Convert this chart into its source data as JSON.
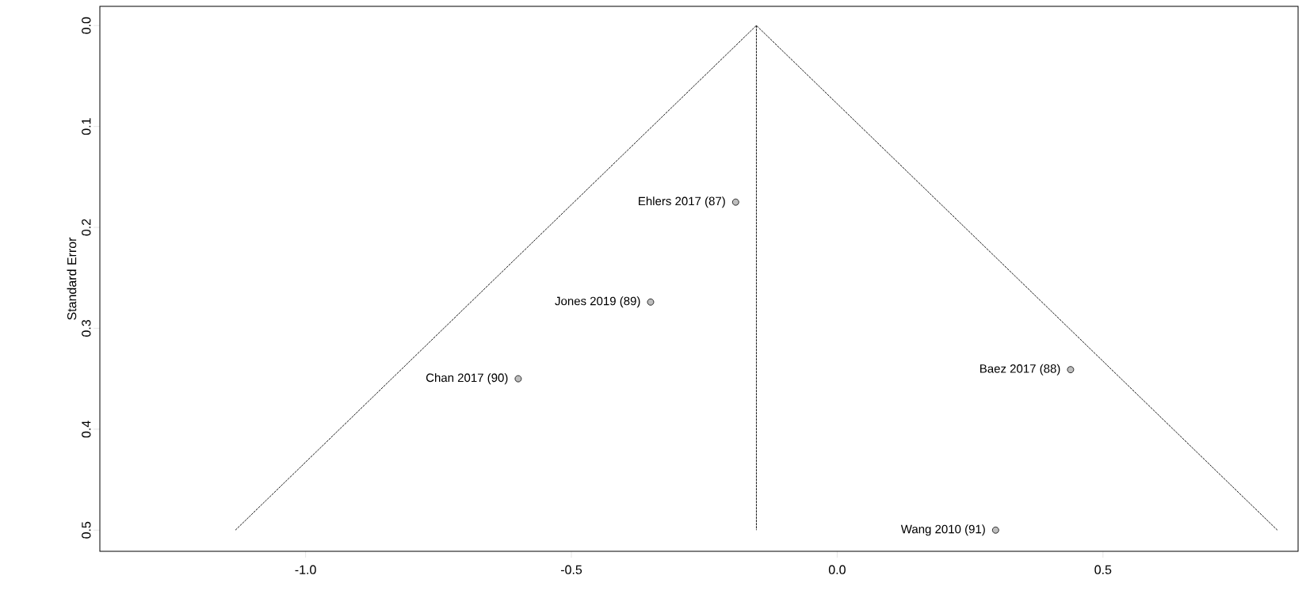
{
  "chart_data": {
    "type": "scatter",
    "ylabel": "Standard Error",
    "xlim": [
      -1.387,
      0.867
    ],
    "ylim": [
      0.521,
      -0.019
    ],
    "xticks": [
      {
        "value": -1.0,
        "label": "-1.0"
      },
      {
        "value": -0.5,
        "label": "-0.5"
      },
      {
        "value": 0,
        "label": "0.0"
      },
      0.5
    ],
    "yticks": [
      {
        "value": 0,
        "label": "0.0"
      },
      0.1,
      0.2,
      0.3,
      0.4,
      0.5
    ],
    "grid": false,
    "series": [
      {
        "type": "line",
        "color": "#000000",
        "line_style": "dotted",
        "marker": "none",
        "x": [
          -1.132,
          -0.152,
          0.828
        ],
        "values": [
          0.5,
          0,
          0.5
        ]
      },
      {
        "type": "line",
        "color": "#000000",
        "line_style": "dotted",
        "marker": "none",
        "x": [
          -0.152,
          -0.152
        ],
        "values": [
          0,
          0.5
        ]
      },
      {
        "color": "#bebebe",
        "marker": "circle",
        "x": [
          -0.191,
          -0.351,
          -0.6,
          0.439,
          0.298
        ],
        "values": [
          0.175,
          0.274,
          0.35,
          0.341,
          0.5
        ]
      }
    ],
    "annotations": [
      {
        "text": "Ehlers 2017 (87)",
        "x": -0.191,
        "y": 0.175
      },
      {
        "text": "Jones 2019 (89)",
        "x": -0.351,
        "y": 0.274
      },
      {
        "text": "Chan 2017 (90)",
        "x": -0.6,
        "y": 0.35
      },
      {
        "text": "Baez 2017 (88)",
        "x": 0.439,
        "y": 0.341
      },
      {
        "text": "Wang 2010 (91)",
        "x": 0.298,
        "y": 0.5
      }
    ]
  }
}
